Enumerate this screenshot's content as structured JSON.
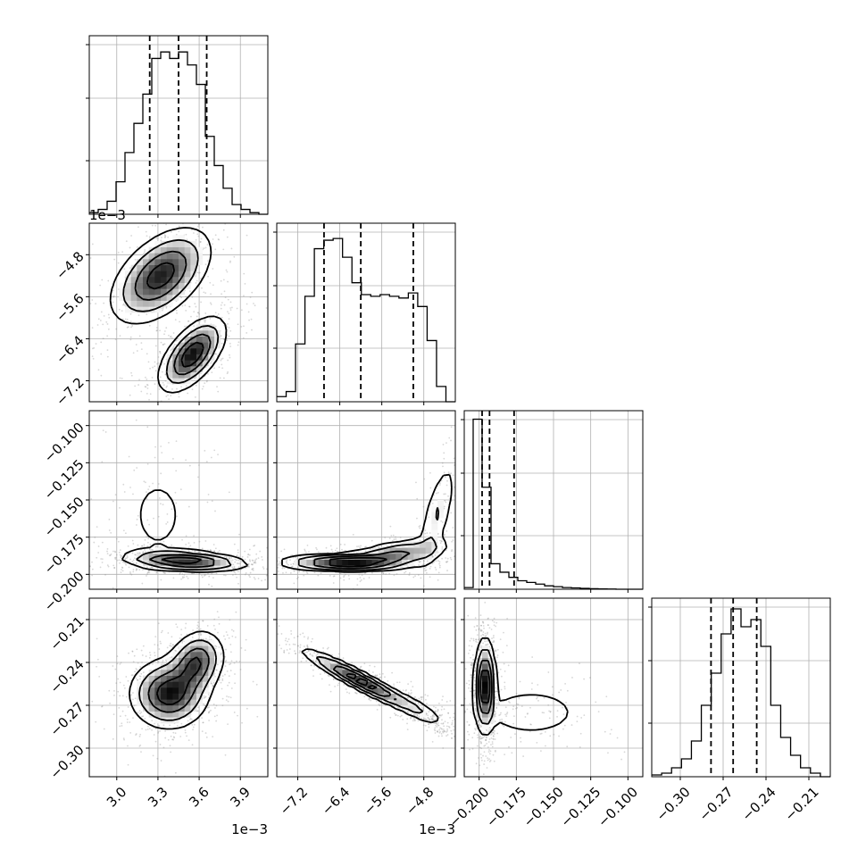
{
  "chart_data": {
    "type": "corner",
    "grid": true,
    "parameters": [
      {
        "range": [
          0.0028,
          0.0041
        ],
        "ticks": [
          0.003,
          0.0033,
          0.0036,
          0.0039
        ],
        "tick_labels": [
          "3.0",
          "3.3",
          "3.6",
          "3.9"
        ],
        "offset_label": "1e−3",
        "quantiles": [
          0.00324,
          0.00345,
          0.003655
        ],
        "histogram": [
          1,
          3,
          8,
          20,
          38,
          56,
          74,
          96,
          100,
          96,
          100,
          92,
          80,
          48,
          30,
          16,
          6,
          3,
          1,
          0
        ],
        "hist_ymax": 110
      },
      {
        "range": [
          -0.0076,
          -0.0042
        ],
        "ticks": [
          -0.0072,
          -0.0064,
          -0.0056,
          -0.0048
        ],
        "tick_labels": [
          "−7.2",
          "−6.4",
          "−5.6",
          "−4.8"
        ],
        "offset_label": "1e−3",
        "quantiles": [
          -0.0067,
          -0.006,
          -0.005
        ],
        "histogram": [
          3,
          6,
          34,
          62,
          90,
          95,
          96,
          85,
          70,
          63,
          62,
          63,
          62,
          61,
          64,
          56,
          36,
          9,
          0
        ],
        "hist_ymax": 105
      },
      {
        "range": [
          -0.21,
          -0.09
        ],
        "ticks": [
          -0.2,
          -0.175,
          -0.15,
          -0.125,
          -0.1
        ],
        "tick_labels": [
          "−0.200",
          "−0.175",
          "−0.150",
          "−0.125",
          "−0.100"
        ],
        "offset_label": "",
        "quantiles": [
          -0.198,
          -0.193,
          -0.1765
        ],
        "histogram": [
          1,
          100,
          60,
          15,
          10,
          7,
          5,
          4,
          3,
          2,
          1.5,
          1,
          0.8,
          0.5,
          0.3,
          0.2,
          0.1,
          0,
          0,
          0
        ],
        "hist_ymax": 105
      },
      {
        "range": [
          -0.32,
          -0.195
        ],
        "ticks": [
          -0.3,
          -0.27,
          -0.24,
          -0.21
        ],
        "tick_labels": [
          "−0.30",
          "−0.27",
          "−0.24",
          "−0.21"
        ],
        "offset_label": "",
        "quantiles": [
          -0.2785,
          -0.263,
          -0.2465
        ],
        "histogram": [
          1,
          2,
          5,
          10,
          20,
          40,
          58,
          80,
          94,
          84,
          88,
          73,
          40,
          22,
          12,
          5,
          2,
          0
        ],
        "hist_ymax": 100
      }
    ],
    "pairs": [
      {
        "x": 0,
        "y": 1,
        "blobs": [
          {
            "cx": 0.00332,
            "cy": -0.0052,
            "sx": 0.00018,
            "sy": 0.00045,
            "rho": 0.5,
            "w": 0.5
          },
          {
            "cx": 0.00355,
            "cy": -0.0067,
            "sx": 0.00012,
            "sy": 0.00035,
            "rho": 0.6,
            "w": 0.5
          }
        ]
      },
      {
        "x": 0,
        "y": 2,
        "blobs": [
          {
            "cx": 0.0035,
            "cy": -0.191,
            "sx": 0.00022,
            "sy": 0.0035,
            "rho": -0.3,
            "w": 0.85
          },
          {
            "cx": 0.0033,
            "cy": -0.16,
            "sx": 0.00015,
            "sy": 0.02,
            "rho": 0.0,
            "w": 0.15
          }
        ]
      },
      {
        "x": 1,
        "y": 2,
        "blobs": [
          {
            "cx": -0.0063,
            "cy": -0.192,
            "sx": 0.0006,
            "sy": 0.0028,
            "rho": 0.0,
            "w": 0.6
          },
          {
            "cx": -0.0053,
            "cy": -0.186,
            "sx": 0.0005,
            "sy": 0.005,
            "rho": 0.5,
            "w": 0.28
          },
          {
            "cx": -0.00455,
            "cy": -0.16,
            "sx": 0.0002,
            "sy": 0.02,
            "rho": 0.7,
            "w": 0.12
          }
        ]
      },
      {
        "x": 0,
        "y": 3,
        "blobs": [
          {
            "cx": 0.00338,
            "cy": -0.262,
            "sx": 0.00014,
            "sy": 0.012,
            "rho": 0.0,
            "w": 0.55
          },
          {
            "cx": 0.00358,
            "cy": -0.24,
            "sx": 0.0001,
            "sy": 0.011,
            "rho": 0.2,
            "w": 0.45
          }
        ]
      },
      {
        "x": 1,
        "y": 3,
        "blobs": [
          {
            "cx": -0.006,
            "cy": -0.253,
            "sx": 0.00055,
            "sy": 0.011,
            "rho": -0.95,
            "w": 0.7
          },
          {
            "cx": -0.0049,
            "cy": -0.273,
            "sx": 0.0003,
            "sy": 0.007,
            "rho": -0.8,
            "w": 0.3
          }
        ]
      },
      {
        "x": 2,
        "y": 3,
        "blobs": [
          {
            "cx": -0.196,
            "cy": -0.256,
            "sx": 0.0035,
            "sy": 0.016,
            "rho": 0.0,
            "w": 0.82
          },
          {
            "cx": -0.165,
            "cy": -0.275,
            "sx": 0.02,
            "sy": 0.01,
            "rho": 0.0,
            "w": 0.18
          }
        ]
      }
    ]
  }
}
